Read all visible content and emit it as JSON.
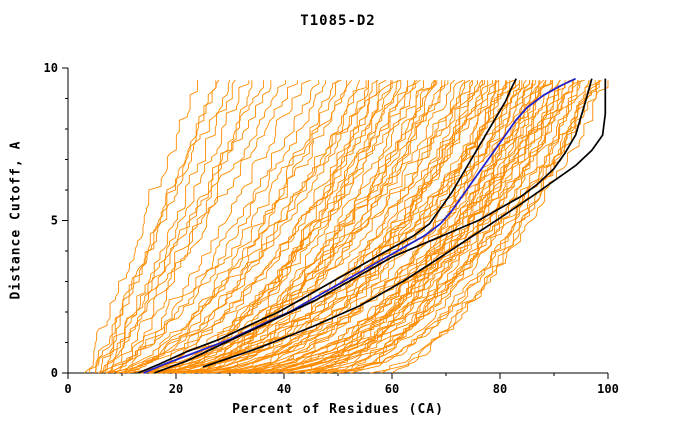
{
  "chart_data": {
    "type": "line",
    "title": "T1085-D2",
    "xlabel": "Percent of Residues (CA)",
    "ylabel": "Distance Cutoff, A",
    "xlim": [
      0,
      100
    ],
    "ylim": [
      0,
      10
    ],
    "x_ticks_major": [
      0,
      20,
      40,
      60,
      80,
      100
    ],
    "x_ticks_minor": [
      10,
      30,
      50,
      70,
      90
    ],
    "y_ticks_major": [
      0,
      5,
      10
    ],
    "y_ticks_minor": [
      1,
      2,
      3,
      4,
      6,
      7,
      8,
      9
    ],
    "grid": false,
    "legend": "none",
    "colors": {
      "ensemble": "#ff8c00",
      "highlight": "#000000",
      "reference": "#2222cc",
      "axis": "#000000"
    },
    "series": [
      {
        "name": "model-highlight-blue",
        "color": "#2222cc",
        "width": 1.8,
        "points": [
          [
            14,
            0
          ],
          [
            18,
            0.3
          ],
          [
            24,
            0.7
          ],
          [
            30,
            1.1
          ],
          [
            36,
            1.6
          ],
          [
            41,
            2.0
          ],
          [
            46,
            2.5
          ],
          [
            50,
            2.9
          ],
          [
            54,
            3.3
          ],
          [
            58,
            3.7
          ],
          [
            62,
            4.1
          ],
          [
            66,
            4.5
          ],
          [
            69,
            4.9
          ],
          [
            71,
            5.3
          ],
          [
            73,
            5.8
          ],
          [
            75,
            6.3
          ],
          [
            77,
            6.8
          ],
          [
            79,
            7.3
          ],
          [
            81,
            7.8
          ],
          [
            83,
            8.3
          ],
          [
            85,
            8.7
          ],
          [
            88,
            9.1
          ],
          [
            91,
            9.4
          ],
          [
            94,
            9.65
          ]
        ]
      },
      {
        "name": "model-highlight-black-1",
        "color": "#000000",
        "width": 1.7,
        "points": [
          [
            13,
            0
          ],
          [
            17,
            0.3
          ],
          [
            22,
            0.7
          ],
          [
            28,
            1.1
          ],
          [
            34,
            1.6
          ],
          [
            39,
            2.0
          ],
          [
            44,
            2.5
          ],
          [
            48,
            2.9
          ],
          [
            52,
            3.3
          ],
          [
            56,
            3.7
          ],
          [
            60,
            4.1
          ],
          [
            64,
            4.5
          ],
          [
            67,
            4.9
          ],
          [
            69,
            5.4
          ],
          [
            71,
            5.9
          ],
          [
            73,
            6.5
          ],
          [
            75,
            7.1
          ],
          [
            77,
            7.7
          ],
          [
            79,
            8.3
          ],
          [
            81,
            8.9
          ],
          [
            82,
            9.3
          ],
          [
            83,
            9.65
          ]
        ]
      },
      {
        "name": "model-highlight-black-2",
        "color": "#000000",
        "width": 1.7,
        "points": [
          [
            16,
            0
          ],
          [
            22,
            0.4
          ],
          [
            28,
            0.9
          ],
          [
            34,
            1.4
          ],
          [
            40,
            1.9
          ],
          [
            46,
            2.4
          ],
          [
            51,
            2.9
          ],
          [
            56,
            3.4
          ],
          [
            60,
            3.8
          ],
          [
            64,
            4.1
          ],
          [
            68,
            4.4
          ],
          [
            72,
            4.7
          ],
          [
            76,
            5.0
          ],
          [
            80,
            5.4
          ],
          [
            84,
            5.8
          ],
          [
            87,
            6.2
          ],
          [
            90,
            6.7
          ],
          [
            92,
            7.2
          ],
          [
            94,
            7.8
          ],
          [
            95,
            8.4
          ],
          [
            96,
            9.0
          ],
          [
            97,
            9.65
          ]
        ]
      },
      {
        "name": "model-highlight-black-3",
        "color": "#000000",
        "width": 1.7,
        "points": [
          [
            25,
            0.2
          ],
          [
            35,
            0.8
          ],
          [
            45,
            1.5
          ],
          [
            54,
            2.2
          ],
          [
            62,
            3.0
          ],
          [
            69,
            3.8
          ],
          [
            75,
            4.5
          ],
          [
            81,
            5.2
          ],
          [
            86,
            5.8
          ],
          [
            90,
            6.3
          ],
          [
            94,
            6.8
          ],
          [
            97,
            7.3
          ],
          [
            99,
            7.8
          ],
          [
            99.5,
            8.5
          ],
          [
            99.5,
            9.65
          ]
        ]
      }
    ],
    "ensemble": {
      "name": "all-server-models",
      "color": "#ff8c00",
      "width": 0.9,
      "count": 100,
      "y_top": 9.7,
      "jitter": 1.3,
      "curves": [
        [
          3,
          24,
          1.0
        ],
        [
          4,
          27,
          0.9
        ],
        [
          5,
          30,
          1.1
        ],
        [
          6,
          33,
          0.95
        ],
        [
          4,
          36,
          0.85
        ],
        [
          7,
          38,
          1.05
        ],
        [
          5,
          40,
          0.9
        ],
        [
          8,
          42,
          1.0
        ],
        [
          6,
          28,
          1.15
        ],
        [
          9,
          34,
          0.8
        ],
        [
          7,
          31,
          1.0
        ],
        [
          10,
          44,
          0.9
        ],
        [
          6,
          46,
          0.7
        ],
        [
          8,
          48,
          0.75
        ],
        [
          10,
          50,
          0.65
        ],
        [
          12,
          52,
          0.8
        ],
        [
          9,
          54,
          0.6
        ],
        [
          14,
          55,
          0.7
        ],
        [
          11,
          57,
          0.75
        ],
        [
          16,
          58,
          0.55
        ],
        [
          13,
          60,
          0.65
        ],
        [
          18,
          62,
          0.7
        ],
        [
          15,
          63,
          0.6
        ],
        [
          20,
          64,
          0.75
        ],
        [
          12,
          65,
          0.5
        ],
        [
          22,
          66,
          0.65
        ],
        [
          17,
          68,
          0.6
        ],
        [
          24,
          69,
          0.7
        ],
        [
          19,
          70,
          0.55
        ],
        [
          26,
          70,
          0.65
        ],
        [
          21,
          67,
          0.6
        ],
        [
          14,
          61,
          0.72
        ],
        [
          23,
          59,
          0.58
        ],
        [
          25,
          56,
          0.68
        ],
        [
          10,
          72,
          0.5
        ],
        [
          15,
          74,
          0.55
        ],
        [
          20,
          75,
          0.6
        ],
        [
          25,
          76,
          0.5
        ],
        [
          30,
          77,
          0.55
        ],
        [
          12,
          78,
          0.45
        ],
        [
          18,
          79,
          0.5
        ],
        [
          28,
          80,
          0.55
        ],
        [
          35,
          81,
          0.6
        ],
        [
          22,
          82,
          0.5
        ],
        [
          32,
          83,
          0.45
        ],
        [
          16,
          84,
          0.55
        ],
        [
          38,
          85,
          0.5
        ],
        [
          26,
          86,
          0.6
        ],
        [
          40,
          87,
          0.55
        ],
        [
          30,
          88,
          0.5
        ],
        [
          45,
          89,
          0.6
        ],
        [
          34,
          90,
          0.5
        ],
        [
          48,
          91,
          0.55
        ],
        [
          36,
          92,
          0.5
        ],
        [
          42,
          84,
          0.48
        ],
        [
          50,
          88,
          0.58
        ],
        [
          44,
          80,
          0.52
        ],
        [
          52,
          86,
          0.6
        ],
        [
          20,
          93,
          0.5
        ],
        [
          30,
          94,
          0.55
        ],
        [
          40,
          95,
          0.5
        ],
        [
          50,
          96,
          0.6
        ],
        [
          55,
          97,
          0.55
        ],
        [
          35,
          98,
          0.5
        ],
        [
          45,
          99,
          0.6
        ],
        [
          58,
          100,
          0.65
        ],
        [
          25,
          95,
          0.45
        ],
        [
          60,
          98,
          0.7
        ],
        [
          7,
          52,
          0.62
        ],
        [
          9,
          58,
          0.58
        ],
        [
          11,
          64,
          0.55
        ],
        [
          13,
          70,
          0.52
        ],
        [
          15,
          76,
          0.5
        ],
        [
          17,
          82,
          0.48
        ],
        [
          19,
          88,
          0.46
        ],
        [
          21,
          73,
          0.5
        ],
        [
          23,
          77,
          0.54
        ],
        [
          27,
          81,
          0.5
        ],
        [
          29,
          85,
          0.52
        ],
        [
          31,
          89,
          0.5
        ],
        [
          33,
          75,
          0.55
        ],
        [
          37,
          79,
          0.5
        ],
        [
          39,
          83,
          0.53
        ],
        [
          41,
          87,
          0.5
        ],
        [
          43,
          91,
          0.55
        ],
        [
          46,
          93,
          0.52
        ],
        [
          49,
          95,
          0.5
        ],
        [
          51,
          97,
          0.55
        ],
        [
          5,
          50,
          0.66
        ],
        [
          8,
          56,
          0.6
        ],
        [
          12,
          62,
          0.58
        ],
        [
          16,
          68,
          0.54
        ],
        [
          20,
          74,
          0.5
        ],
        [
          24,
          78,
          0.52
        ],
        [
          28,
          84,
          0.5
        ],
        [
          32,
          90,
          0.48
        ],
        [
          36,
          94,
          0.5
        ],
        [
          40,
          86,
          0.55
        ],
        [
          44,
          92,
          0.5
        ],
        [
          48,
          98,
          0.52
        ]
      ]
    }
  }
}
